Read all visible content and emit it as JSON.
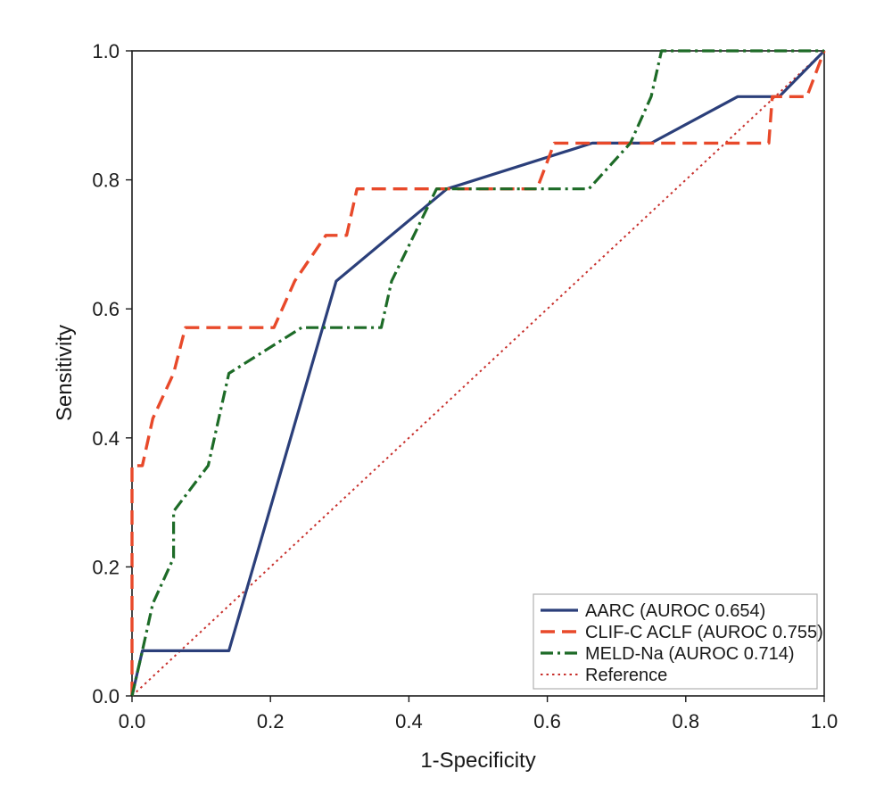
{
  "chart_data": {
    "type": "line",
    "xlabel": "1-Specificity",
    "ylabel": "Sensitivity",
    "xlim": [
      0,
      1
    ],
    "ylim": [
      0,
      1
    ],
    "x_ticks": [
      "0.0",
      "0.2",
      "0.4",
      "0.6",
      "0.8",
      "1.0"
    ],
    "y_ticks": [
      "0.0",
      "0.2",
      "0.4",
      "0.6",
      "0.8",
      "1.0"
    ],
    "grid": false,
    "legend_position": "bottom-right",
    "series": [
      {
        "name": "AARC (AUROC 0.654)",
        "color": "#2b3f7a",
        "style": "solid",
        "points": [
          [
            0,
            0
          ],
          [
            0.015,
            0.07
          ],
          [
            0.14,
            0.07
          ],
          [
            0.295,
            0.643
          ],
          [
            0.455,
            0.786
          ],
          [
            0.665,
            0.857
          ],
          [
            0.75,
            0.857
          ],
          [
            0.875,
            0.929
          ],
          [
            0.935,
            0.929
          ],
          [
            1,
            1
          ]
        ]
      },
      {
        "name": "CLIF-C ACLF (AUROC 0.755)",
        "color": "#e8492a",
        "style": "dashed",
        "points": [
          [
            0,
            0
          ],
          [
            0,
            0.357
          ],
          [
            0.015,
            0.357
          ],
          [
            0.03,
            0.43
          ],
          [
            0.06,
            0.5
          ],
          [
            0.077,
            0.571
          ],
          [
            0.205,
            0.571
          ],
          [
            0.235,
            0.643
          ],
          [
            0.28,
            0.714
          ],
          [
            0.31,
            0.714
          ],
          [
            0.325,
            0.786
          ],
          [
            0.585,
            0.786
          ],
          [
            0.61,
            0.857
          ],
          [
            0.92,
            0.857
          ],
          [
            0.925,
            0.929
          ],
          [
            0.975,
            0.929
          ],
          [
            1,
            1
          ]
        ]
      },
      {
        "name": "MELD-Na (AUROC 0.714)",
        "color": "#1d6b27",
        "style": "dashdot",
        "points": [
          [
            0,
            0
          ],
          [
            0.015,
            0.07
          ],
          [
            0.03,
            0.143
          ],
          [
            0.06,
            0.214
          ],
          [
            0.06,
            0.286
          ],
          [
            0.11,
            0.357
          ],
          [
            0.14,
            0.5
          ],
          [
            0.245,
            0.571
          ],
          [
            0.36,
            0.571
          ],
          [
            0.375,
            0.643
          ],
          [
            0.44,
            0.786
          ],
          [
            0.66,
            0.786
          ],
          [
            0.72,
            0.857
          ],
          [
            0.75,
            0.929
          ],
          [
            0.765,
            1
          ],
          [
            1,
            1
          ]
        ]
      },
      {
        "name": "Reference",
        "color": "#c8302c",
        "style": "dotted",
        "points": [
          [
            0,
            0
          ],
          [
            1,
            1
          ]
        ]
      }
    ]
  }
}
